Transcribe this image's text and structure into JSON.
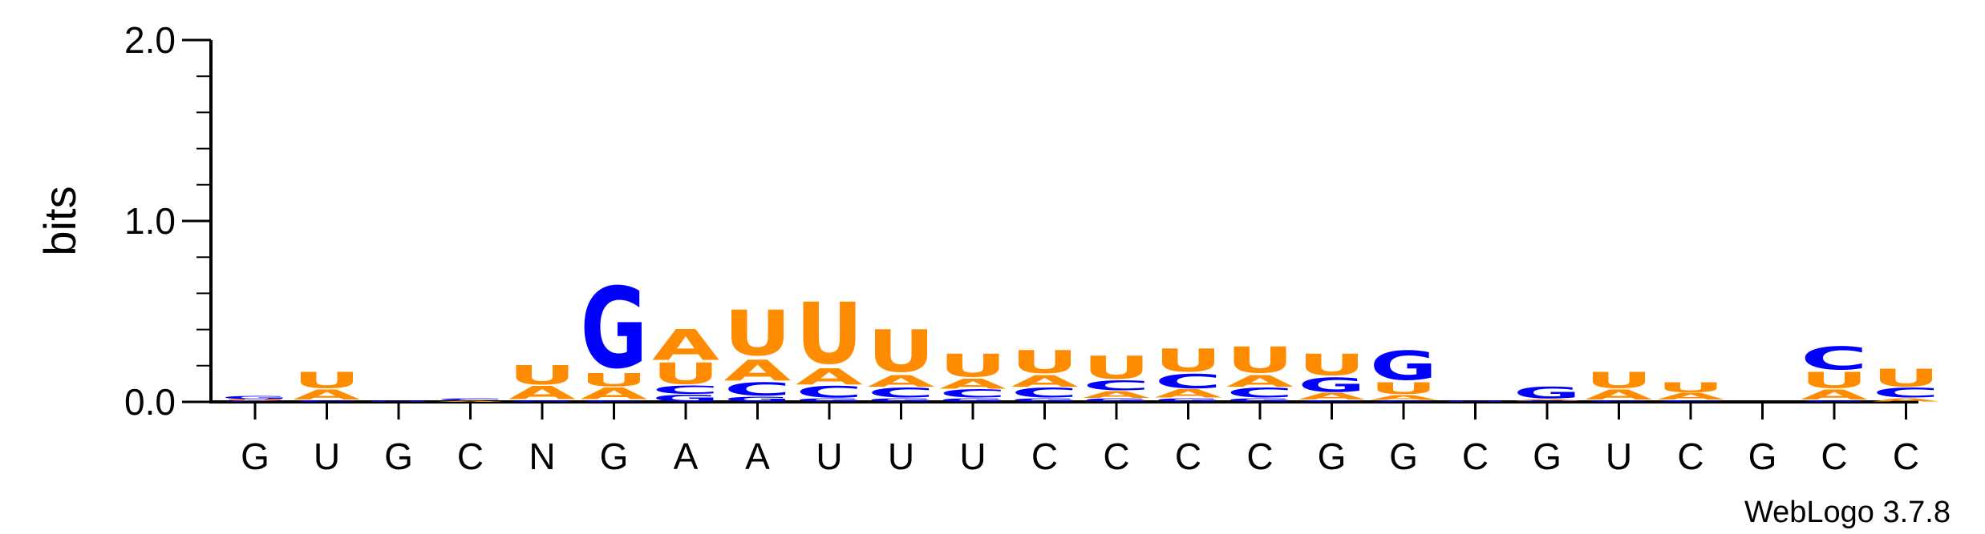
{
  "chart_data": {
    "type": "sequence-logo",
    "ylabel": "bits",
    "ylim": [
      0,
      2.0
    ],
    "yticks": [
      "0.0",
      "1.0",
      "2.0"
    ],
    "colors": {
      "G": "#0000ff",
      "C": "#0000ff",
      "A": "#ff8c00",
      "U": "#ff8c00",
      "N": "#ff8c00"
    },
    "credit": "WebLogo 3.7.8",
    "positions": [
      {
        "label": "G",
        "stack": [
          [
            "C",
            0.005
          ],
          [
            "U",
            0.01
          ],
          [
            "G",
            0.02
          ]
        ]
      },
      {
        "label": "U",
        "stack": [
          [
            "C",
            0.01
          ],
          [
            "A",
            0.06
          ],
          [
            "U",
            0.1
          ]
        ]
      },
      {
        "label": "G",
        "stack": [
          [
            "G",
            0.005
          ]
        ]
      },
      {
        "label": "C",
        "stack": [
          [
            "A",
            0.007
          ],
          [
            "C",
            0.012
          ]
        ]
      },
      {
        "label": "N",
        "stack": [
          [
            "G",
            0.01
          ],
          [
            "A",
            0.08
          ],
          [
            "U",
            0.12
          ]
        ]
      },
      {
        "label": "G",
        "stack": [
          [
            "C",
            0.01
          ],
          [
            "A",
            0.07
          ],
          [
            "U",
            0.08
          ],
          [
            "G",
            0.5
          ]
        ]
      },
      {
        "label": "A",
        "stack": [
          [
            "G",
            0.04
          ],
          [
            "C",
            0.05
          ],
          [
            "U",
            0.13
          ],
          [
            "A",
            0.19
          ]
        ]
      },
      {
        "label": "A",
        "stack": [
          [
            "G",
            0.03
          ],
          [
            "C",
            0.08
          ],
          [
            "A",
            0.13
          ],
          [
            "U",
            0.28
          ]
        ]
      },
      {
        "label": "U",
        "stack": [
          [
            "G",
            0.02
          ],
          [
            "C",
            0.07
          ],
          [
            "A",
            0.1
          ],
          [
            "U",
            0.38
          ]
        ]
      },
      {
        "label": "U",
        "stack": [
          [
            "G",
            0.02
          ],
          [
            "C",
            0.06
          ],
          [
            "A",
            0.07
          ],
          [
            "U",
            0.26
          ]
        ]
      },
      {
        "label": "U",
        "stack": [
          [
            "G",
            0.02
          ],
          [
            "C",
            0.05
          ],
          [
            "A",
            0.06
          ],
          [
            "U",
            0.14
          ]
        ]
      },
      {
        "label": "C",
        "stack": [
          [
            "G",
            0.02
          ],
          [
            "C",
            0.06
          ],
          [
            "A",
            0.07
          ],
          [
            "U",
            0.14
          ]
        ]
      },
      {
        "label": "C",
        "stack": [
          [
            "G",
            0.02
          ],
          [
            "A",
            0.04
          ],
          [
            "C",
            0.06
          ],
          [
            "U",
            0.14
          ]
        ]
      },
      {
        "label": "C",
        "stack": [
          [
            "G",
            0.02
          ],
          [
            "A",
            0.05
          ],
          [
            "C",
            0.09
          ],
          [
            "U",
            0.14
          ]
        ]
      },
      {
        "label": "C",
        "stack": [
          [
            "G",
            0.02
          ],
          [
            "C",
            0.06
          ],
          [
            "A",
            0.07
          ],
          [
            "U",
            0.16
          ]
        ]
      },
      {
        "label": "G",
        "stack": [
          [
            "C",
            0.01
          ],
          [
            "A",
            0.04
          ],
          [
            "G",
            0.09
          ],
          [
            "U",
            0.13
          ]
        ]
      },
      {
        "label": "G",
        "stack": [
          [
            "C",
            0.01
          ],
          [
            "A",
            0.03
          ],
          [
            "U",
            0.07
          ],
          [
            "G",
            0.18
          ]
        ]
      },
      {
        "label": "C",
        "stack": [
          [
            "G",
            0.005
          ]
        ]
      },
      {
        "label": "G",
        "stack": [
          [
            "C",
            0.005
          ],
          [
            "A",
            0.01
          ],
          [
            "G",
            0.07
          ]
        ]
      },
      {
        "label": "U",
        "stack": [
          [
            "C",
            0.01
          ],
          [
            "A",
            0.06
          ],
          [
            "U",
            0.1
          ]
        ]
      },
      {
        "label": "C",
        "stack": [
          [
            "C",
            0.01
          ],
          [
            "A",
            0.04
          ],
          [
            "U",
            0.06
          ]
        ]
      },
      {
        "label": "G",
        "stack": []
      },
      {
        "label": "C",
        "stack": [
          [
            "G",
            0.01
          ],
          [
            "A",
            0.06
          ],
          [
            "U",
            0.1
          ],
          [
            "C",
            0.14
          ]
        ]
      },
      {
        "label": "C",
        "stack": [
          [
            "A",
            0.02
          ],
          [
            "C",
            0.06
          ],
          [
            "U",
            0.11
          ]
        ]
      }
    ]
  }
}
